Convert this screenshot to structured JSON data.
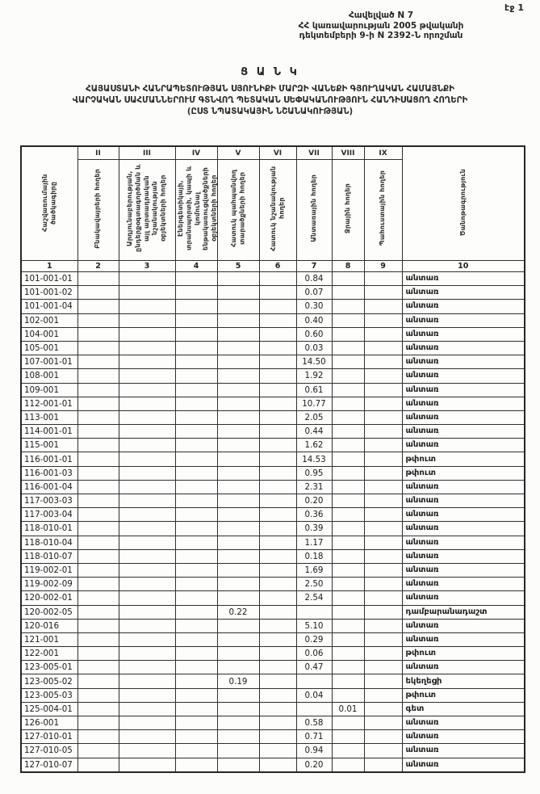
{
  "page": {
    "page_label": "էջ 1"
  },
  "decree": {
    "line1": "Հավելված N 7",
    "line2": "ՀՀ կառավարության 2005 թվականի",
    "line3": "դեկտեմբերի 9-ի N 2392-Ն որոշման"
  },
  "title": "Ց Ա Ն Կ",
  "subtitle": {
    "line1": "ՀԱՅԱՍՏԱՆԻ ՀԱՆՐԱՊԵՏՈՒԹՅԱՆ ՍՅՈՒՆԻՔԻ ՄԱՐԶԻ ՎԱՆԵՔԻ ԳՅՈՒՂԱԿԱՆ ՀԱՄԱՅՆՔԻ",
    "line2": "ՎԱՐՉԱԿԱՆ ՍԱՀՄԱՆՆԵՐՈՒՄ ԳՏՆՎՈՂ ՊԵՏԱԿԱՆ ՍԵՓԱԿԱՆՈՒԹՅՈՒՆ ՀԱՆԴԻՍԱՑՈՂ ՀՈՂԵՐԻ",
    "line3": "(ԸՍՏ ՆՊԱՏԱԿԱՅԻՆ ՆՇԱՆԱԿՈՒԹՅԱՆ)"
  },
  "table": {
    "col1_header": "Հաշվառումային ծածկագիրը",
    "note_header": "Ծանոթագրություն",
    "roman": [
      "II",
      "III",
      "IV",
      "V",
      "VI",
      "VII",
      "VIII",
      "IX"
    ],
    "column_headers": [
      "Բնակավայրերի հողեր",
      "Արդյունաբերության, ընդերքօգտագործման և այլ արտադրական նշանակության օբյեկտների հողեր",
      "Էներգետիկայի, տրանսպորտի, կապի և կոմունալ ենթակառուցվածքների օբյեկտների հողեր",
      "Հատուկ պահպանվող տարածքների հողեր",
      "Հատուկ նշանակության հողեր",
      "Անտառային հողեր",
      "Ջրային հողեր",
      "Պահուստային հողեր"
    ],
    "numbers": [
      "1",
      "2",
      "3",
      "4",
      "5",
      "6",
      "7",
      "8",
      "9",
      "10"
    ],
    "rows": [
      [
        "101-001-01",
        "",
        "",
        "",
        "",
        "",
        "0.84",
        "",
        "",
        "անտառ"
      ],
      [
        "101-001-02",
        "",
        "",
        "",
        "",
        "",
        "0.07",
        "",
        "",
        "անտառ"
      ],
      [
        "101-001-04",
        "",
        "",
        "",
        "",
        "",
        "0.30",
        "",
        "",
        "անտառ"
      ],
      [
        "102-001",
        "",
        "",
        "",
        "",
        "",
        "0.40",
        "",
        "",
        "անտառ"
      ],
      [
        "104-001",
        "",
        "",
        "",
        "",
        "",
        "0.60",
        "",
        "",
        "անտառ"
      ],
      [
        "105-001",
        "",
        "",
        "",
        "",
        "",
        "0.03",
        "",
        "",
        "անտառ"
      ],
      [
        "107-001-01",
        "",
        "",
        "",
        "",
        "",
        "14.50",
        "",
        "",
        "անտառ"
      ],
      [
        "108-001",
        "",
        "",
        "",
        "",
        "",
        "1.92",
        "",
        "",
        "անտառ"
      ],
      [
        "109-001",
        "",
        "",
        "",
        "",
        "",
        "0.61",
        "",
        "",
        "անտառ"
      ],
      [
        "112-001-01",
        "",
        "",
        "",
        "",
        "",
        "10.77",
        "",
        "",
        "անտառ"
      ],
      [
        "113-001",
        "",
        "",
        "",
        "",
        "",
        "2.05",
        "",
        "",
        "անտառ"
      ],
      [
        "114-001-01",
        "",
        "",
        "",
        "",
        "",
        "0.44",
        "",
        "",
        "անտառ"
      ],
      [
        "115-001",
        "",
        "",
        "",
        "",
        "",
        "1.62",
        "",
        "",
        "անտառ"
      ],
      [
        "116-001-01",
        "",
        "",
        "",
        "",
        "",
        "14.53",
        "",
        "",
        "թփուտ"
      ],
      [
        "116-001-03",
        "",
        "",
        "",
        "",
        "",
        "0.95",
        "",
        "",
        "թփուտ"
      ],
      [
        "116-001-04",
        "",
        "",
        "",
        "",
        "",
        "2.31",
        "",
        "",
        "անտառ"
      ],
      [
        "117-003-03",
        "",
        "",
        "",
        "",
        "",
        "0.20",
        "",
        "",
        "անտառ"
      ],
      [
        "117-003-04",
        "",
        "",
        "",
        "",
        "",
        "0.36",
        "",
        "",
        "անտառ"
      ],
      [
        "118-010-01",
        "",
        "",
        "",
        "",
        "",
        "0.39",
        "",
        "",
        "անտառ"
      ],
      [
        "118-010-04",
        "",
        "",
        "",
        "",
        "",
        "1.17",
        "",
        "",
        "անտառ"
      ],
      [
        "118-010-07",
        "",
        "",
        "",
        "",
        "",
        "0.18",
        "",
        "",
        "անտառ"
      ],
      [
        "119-002-01",
        "",
        "",
        "",
        "",
        "",
        "1.69",
        "",
        "",
        "անտառ"
      ],
      [
        "119-002-09",
        "",
        "",
        "",
        "",
        "",
        "2.50",
        "",
        "",
        "անտառ"
      ],
      [
        "120-002-01",
        "",
        "",
        "",
        "",
        "",
        "2.54",
        "",
        "",
        "անտառ"
      ],
      [
        "120-002-05",
        "",
        "",
        "",
        "0.22",
        "",
        "",
        "",
        "",
        "դամբարանադաշտ"
      ],
      [
        "120-016",
        "",
        "",
        "",
        "",
        "",
        "5.10",
        "",
        "",
        "անտառ"
      ],
      [
        "121-001",
        "",
        "",
        "",
        "",
        "",
        "0.29",
        "",
        "",
        "անտառ"
      ],
      [
        "122-001",
        "",
        "",
        "",
        "",
        "",
        "0.06",
        "",
        "",
        "թփուտ"
      ],
      [
        "123-005-01",
        "",
        "",
        "",
        "",
        "",
        "0.47",
        "",
        "",
        "անտառ"
      ],
      [
        "123-005-02",
        "",
        "",
        "",
        "0.19",
        "",
        "",
        "",
        "",
        "եկեղեցի"
      ],
      [
        "123-005-03",
        "",
        "",
        "",
        "",
        "",
        "0.04",
        "",
        "",
        "թփուտ"
      ],
      [
        "125-004-01",
        "",
        "",
        "",
        "",
        "",
        "",
        "0.01",
        "",
        "գետ"
      ],
      [
        "126-001",
        "",
        "",
        "",
        "",
        "",
        "0.58",
        "",
        "",
        "անտառ"
      ],
      [
        "127-010-01",
        "",
        "",
        "",
        "",
        "",
        "0.71",
        "",
        "",
        "անտառ"
      ],
      [
        "127-010-05",
        "",
        "",
        "",
        "",
        "",
        "0.94",
        "",
        "",
        "անտառ"
      ],
      [
        "127-010-07",
        "",
        "",
        "",
        "",
        "",
        "0.20",
        "",
        "",
        "անտառ"
      ]
    ]
  }
}
